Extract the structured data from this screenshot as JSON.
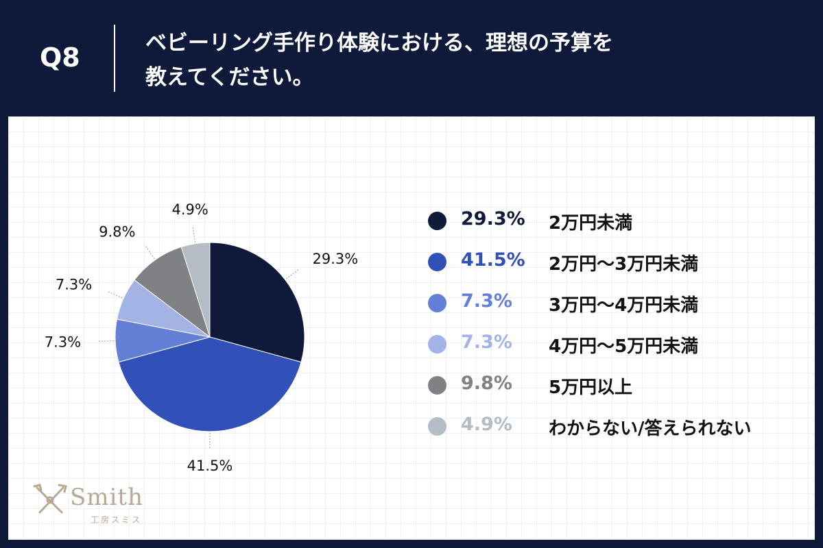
{
  "header": {
    "q_number": "Q8",
    "title_line1": "ベビーリング手作り体験における、理想の予算を",
    "title_line2": "教えてください。"
  },
  "chart_data": {
    "type": "pie",
    "slices": [
      {
        "label": "2万円未満",
        "pct_text": "29.3%",
        "value": 29.3,
        "color": "#0f1a3a"
      },
      {
        "label": "2万円〜3万円未満",
        "pct_text": "41.5%",
        "value": 41.5,
        "color": "#3151b8"
      },
      {
        "label": "3万円〜4万円未満",
        "pct_text": "7.3%",
        "value": 7.3,
        "color": "#6480d6"
      },
      {
        "label": "4万円〜5万円未満",
        "pct_text": "7.3%",
        "value": 7.3,
        "color": "#a4b3e6"
      },
      {
        "label": "5万円以上",
        "pct_text": "9.8%",
        "value": 9.8,
        "color": "#808184"
      },
      {
        "label": "わからない/答えられない",
        "pct_text": "4.9%",
        "value": 4.9,
        "color": "#b4bdc5"
      }
    ]
  },
  "legend_colors": [
    "#0f1a3a",
    "#3151b8",
    "#6480d6",
    "#a4b3e6",
    "#808184",
    "#b4bdc5"
  ],
  "logo": {
    "name": "Smith",
    "sub": "工房スミス",
    "icon": "crossed-tools-icon"
  }
}
